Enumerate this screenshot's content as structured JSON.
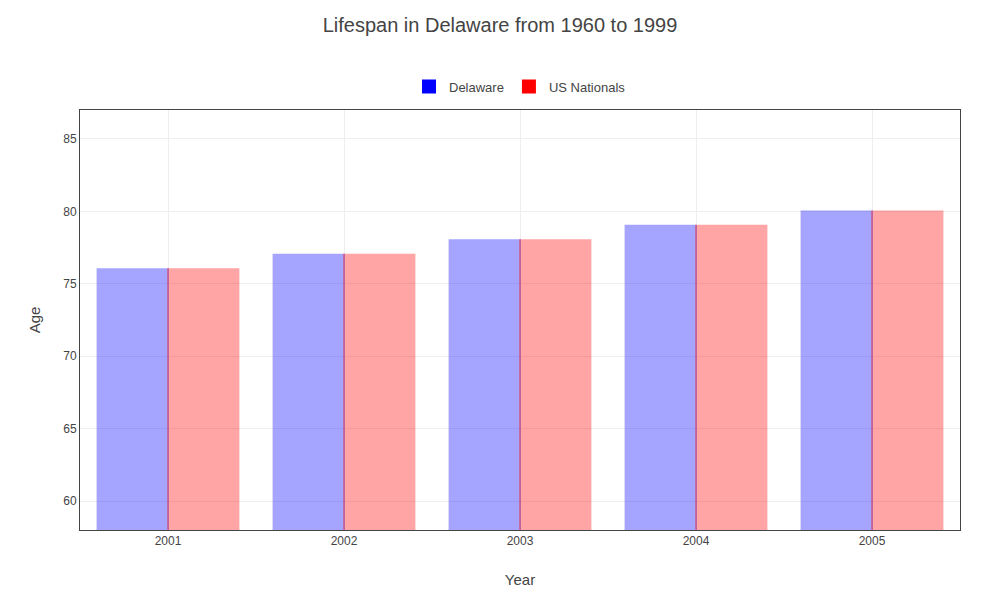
{
  "chart_data": {
    "type": "bar",
    "title": "Lifespan in Delaware from 1960 to 1999",
    "xlabel": "Year",
    "ylabel": "Age",
    "categories": [
      "2001",
      "2002",
      "2003",
      "2004",
      "2005"
    ],
    "series": [
      {
        "name": "Delaware",
        "color": "#0000ff",
        "values": [
          76,
          77,
          78,
          79,
          80
        ]
      },
      {
        "name": "US Nationals",
        "color": "#ff0000",
        "values": [
          76,
          77,
          78,
          79,
          80
        ]
      }
    ],
    "ylim": [
      58,
      87
    ],
    "yticks": [
      60,
      65,
      70,
      75,
      80,
      85
    ],
    "grid": true,
    "legend": "top"
  }
}
